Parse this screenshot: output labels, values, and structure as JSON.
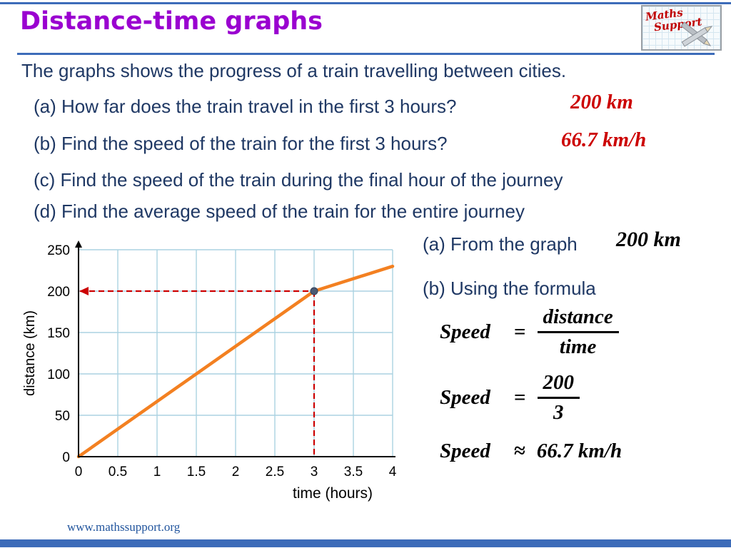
{
  "slide": {
    "title": "Distance-time graphs",
    "logo": {
      "line1": "Maths",
      "line2": "Support"
    },
    "intro": "The graphs shows the progress of a train travelling between cities.",
    "questions": [
      {
        "label": "(a) How far does the train travel in the first 3 hours?",
        "answer": "200 km"
      },
      {
        "label": "(b) Find the speed of the train for the first 3 hours?",
        "answer": "66.7 km/h"
      },
      {
        "label": "(c) Find the speed of the train during the final hour of the journey",
        "answer": ""
      },
      {
        "label": "(d) Find the average speed of the train for the entire journey",
        "answer": ""
      }
    ],
    "solution": {
      "a_label": "(a) From the graph",
      "a_value": "200 km",
      "b_label": "(b) Using the formula",
      "f1_lhs": "Speed",
      "f1_eq": "=",
      "f1_num": "distance",
      "f1_den": "time",
      "f2_lhs": "Speed",
      "f2_eq": "=",
      "f2_num": "200",
      "f2_den": "3",
      "r_lhs": "Speed",
      "r_eq": "≈",
      "r_value": "66.7 km/h"
    },
    "footer": "www.mathssupport.org"
  },
  "chart_data": {
    "type": "line",
    "series_name": "train journey",
    "x": [
      0,
      3,
      4
    ],
    "values": [
      0,
      200,
      230
    ],
    "title": "",
    "xlabel": "time (hours)",
    "ylabel": "distance (km)",
    "xlim": [
      0,
      4
    ],
    "ylim": [
      0,
      250
    ],
    "x_ticks": [
      0,
      0.5,
      1,
      1.5,
      2,
      2.5,
      3,
      3.5,
      4
    ],
    "y_ticks": [
      0,
      50,
      100,
      150,
      200,
      250
    ],
    "grid": true,
    "line_color": "#F38021",
    "guide_color": "#CC0000",
    "guide_point": {
      "x": 3,
      "y": 200
    }
  },
  "colors": {
    "title_purple": "#9A00D0",
    "body_navy": "#1F3864",
    "answer_red": "#CC0000",
    "accent_blue": "#3D6CB9",
    "grid_blue": "#ABD2E2",
    "footer_blue": "#23569E"
  }
}
